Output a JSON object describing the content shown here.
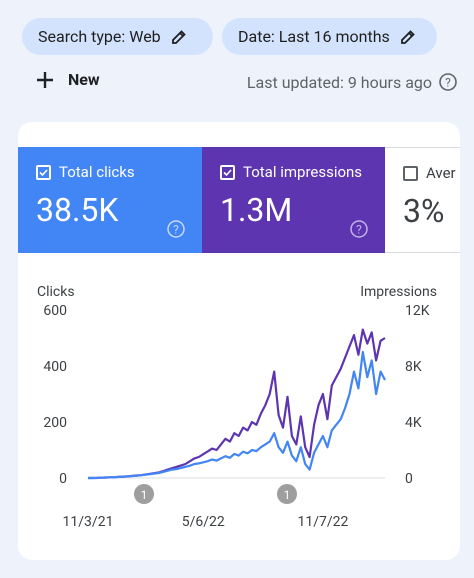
{
  "filters": [
    "Search type: Web",
    "Date: Last 16 months"
  ],
  "new_button": "New",
  "last_updated": "Last updated: 9 hours ago",
  "cards": [
    {
      "label": "Total clicks",
      "value": "38.5K"
    },
    {
      "label": "Total impressions",
      "value": "1.3M"
    },
    {
      "label": "Aver",
      "value": "3%"
    }
  ],
  "chart_data": {
    "type": "line",
    "ylabel": "Clicks",
    "y2label": "Impressions",
    "categories": [
      "11/3/21",
      null,
      null,
      null,
      null,
      null,
      null,
      null,
      null,
      null,
      null,
      null,
      null,
      null,
      null,
      null,
      null,
      null,
      null,
      null,
      null,
      null,
      null,
      null,
      null,
      null,
      "5/6/22",
      null,
      null,
      null,
      null,
      null,
      null,
      null,
      null,
      null,
      null,
      null,
      null,
      null,
      null,
      null,
      null,
      null,
      null,
      null,
      null,
      null,
      null,
      null,
      null,
      null,
      null,
      "11/7/22",
      null,
      null,
      null,
      null,
      null,
      null,
      null,
      null,
      null,
      null,
      null,
      null,
      null,
      null
    ],
    "series": [
      {
        "name": "Clicks",
        "color": "#4285f4",
        "values": [
          0,
          0,
          0,
          1,
          2,
          2,
          3,
          4,
          5,
          6,
          7,
          8,
          10,
          12,
          14,
          16,
          18,
          22,
          26,
          30,
          32,
          36,
          40,
          44,
          50,
          52,
          56,
          60,
          66,
          62,
          70,
          78,
          72,
          86,
          80,
          94,
          88,
          100,
          96,
          110,
          120,
          130,
          160,
          110,
          90,
          130,
          80,
          60,
          110,
          50,
          30,
          90,
          120,
          150,
          110,
          170,
          190,
          210,
          250,
          300,
          380,
          320,
          450,
          360,
          420,
          300,
          380,
          350
        ]
      },
      {
        "name": "Impressions",
        "color": "#5e35b1",
        "axis": "y2",
        "values": [
          0,
          0,
          10,
          20,
          30,
          50,
          60,
          80,
          100,
          120,
          150,
          180,
          200,
          250,
          300,
          350,
          400,
          500,
          600,
          700,
          800,
          900,
          1000,
          1200,
          1400,
          1500,
          1700,
          1900,
          2100,
          2000,
          2400,
          2800,
          2600,
          3200,
          3000,
          3600,
          3400,
          4000,
          3800,
          4600,
          5200,
          6000,
          7600,
          4500,
          3600,
          5800,
          3000,
          2400,
          4400,
          2200,
          1500,
          3800,
          5200,
          6000,
          4200,
          6600,
          7200,
          7800,
          8600,
          9400,
          10200,
          8800,
          10600,
          9600,
          10400,
          8400,
          9800,
          10000
        ]
      }
    ],
    "ylim": [
      0,
      600
    ],
    "yticks": [
      0,
      200,
      400,
      600
    ],
    "y2lim": [
      0,
      12000
    ],
    "y2ticks": [
      0,
      {
        "value": 4000,
        "label": "4K"
      },
      {
        "value": 8000,
        "label": "8K"
      },
      {
        "value": 12000,
        "label": "12K"
      }
    ],
    "annotations": [
      "1",
      "1"
    ]
  }
}
